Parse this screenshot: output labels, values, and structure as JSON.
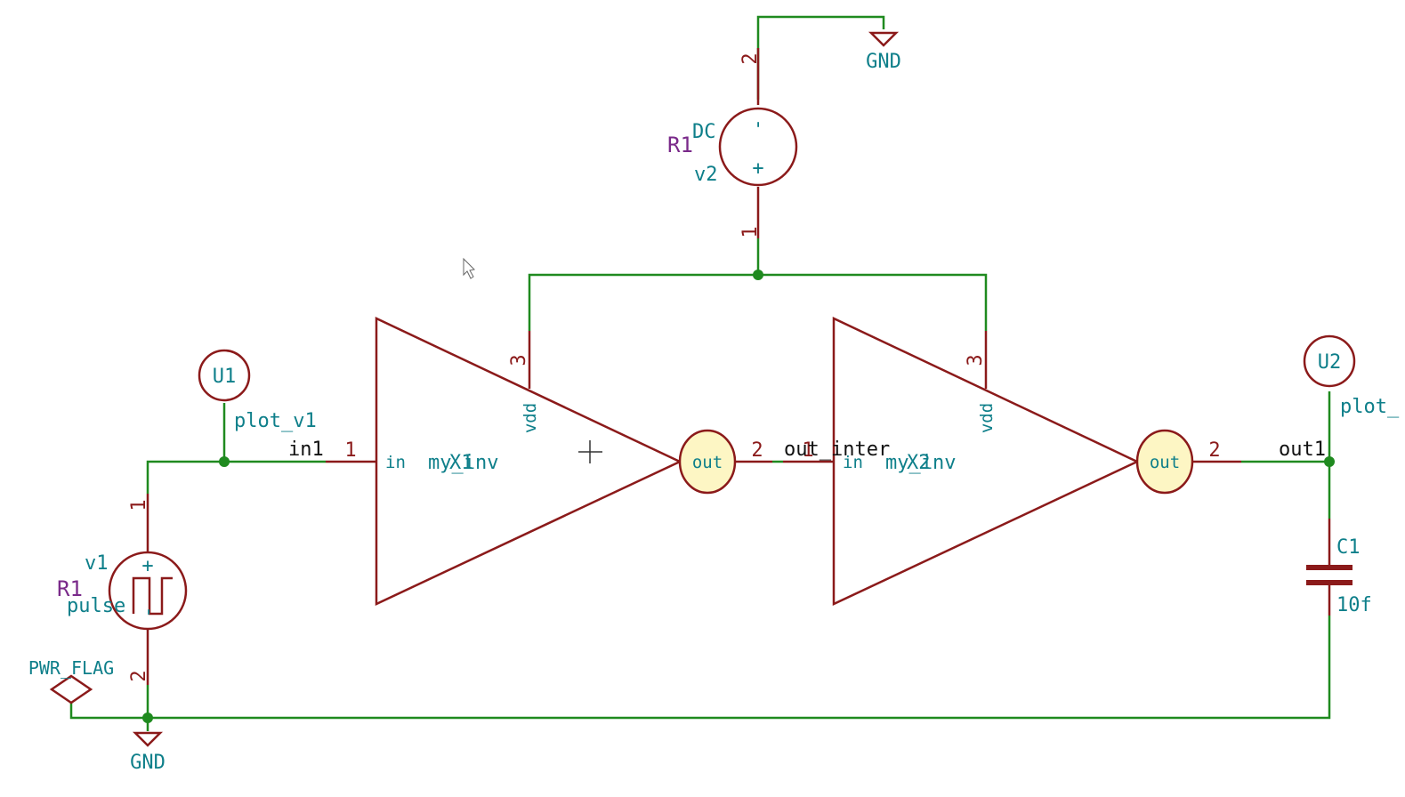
{
  "colors": {
    "wire": "#1f8a1f",
    "component": "#8b1a1a",
    "field_text": "#0e7f8a",
    "ref_text": "#7a2a8a",
    "net_label": "#111111",
    "port_fill": "#fdf6c4"
  },
  "icons": {
    "cursor": "mouse-pointer-icon",
    "crosshair": "crosshair-icon",
    "ground": "ground-symbol-icon",
    "power_flag": "diamond-icon"
  },
  "schematic": {
    "gnd_top": "GND",
    "gnd_bottom": "GND",
    "v2": {
      "ref": "R1",
      "value": "DC",
      "name": "v2",
      "pin_top": "2",
      "pin_bottom": "1",
      "minus": "-",
      "plus": "+"
    },
    "v1": {
      "ref": "R1",
      "name": "v1",
      "value": "pulse",
      "pin_top": "1",
      "pin_bottom": "2",
      "plus": "+",
      "minus": "-"
    },
    "u1": {
      "ref": "U1",
      "value": "plot_v1"
    },
    "u2": {
      "ref": "U2",
      "value": "plot_"
    },
    "pwr_flag": "PWR_FLAG",
    "x1": {
      "ref": "X1",
      "value": "my_inv",
      "pin_in_num": "1",
      "pin_in_name": "in",
      "pin_vdd_num": "3",
      "pin_vdd_name": "vdd",
      "pin_out_num": "2",
      "pin_out_name": "out"
    },
    "x2": {
      "ref": "X2",
      "value": "my_inv",
      "pin_in_num": "1",
      "pin_in_name": "in",
      "pin_vdd_num": "3",
      "pin_vdd_name": "vdd",
      "pin_out_num": "2",
      "pin_out_name": "out"
    },
    "c1": {
      "ref": "C1",
      "value": "10f"
    },
    "nets": {
      "in1": "in1",
      "out_inter": "out_inter",
      "out1": "out1"
    }
  }
}
